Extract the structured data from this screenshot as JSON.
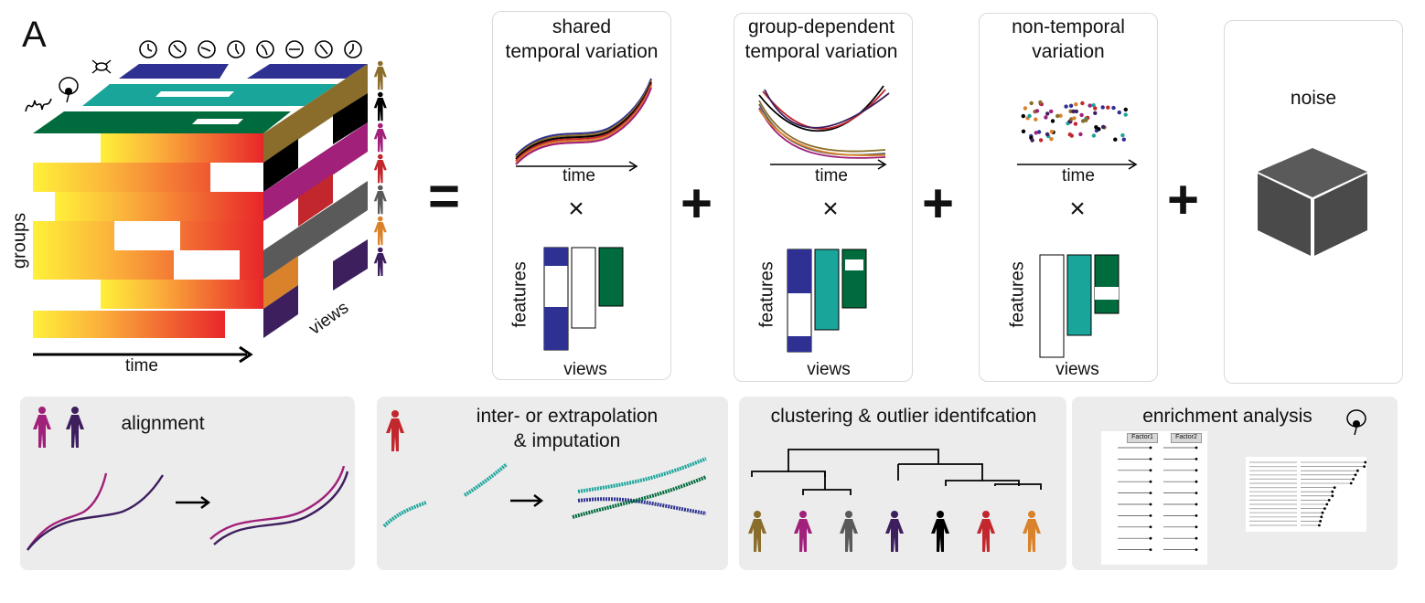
{
  "panel_label": "A",
  "cube": {
    "x_axis_label": "time",
    "y_axis_label": "groups",
    "z_axis_label": "views"
  },
  "equals_sign": "=",
  "components": [
    {
      "title_line1": "shared",
      "title_line2": "temporal variation",
      "x_label": "time",
      "multiply": "×",
      "heatmap_y_label": "features",
      "heatmap_x_label": "views"
    },
    {
      "title_line1": "group-dependent",
      "title_line2": "temporal variation",
      "x_label": "time",
      "multiply": "×",
      "heatmap_y_label": "features",
      "heatmap_x_label": "views"
    },
    {
      "title_line1": "non-temporal",
      "title_line2": "variation",
      "x_label": "time",
      "multiply": "×",
      "heatmap_y_label": "features",
      "heatmap_x_label": "views"
    },
    {
      "title_line1": "noise"
    }
  ],
  "plus_sign": "+",
  "applications": [
    {
      "title": "alignment"
    },
    {
      "title_line1": "inter- or extrapolation",
      "title_line2": "& imputation"
    },
    {
      "title": "clustering & outlier identifcation"
    },
    {
      "title": "enrichment analysis"
    }
  ],
  "enrichment": {
    "factor1_header": "Factor1",
    "factor2_header": "Factor2"
  },
  "colors": {
    "navy": "#2e3192",
    "teal": "#1aa59b",
    "green": "#006b3c",
    "olive": "#8a6d2b",
    "magenta": "#a0207a",
    "red": "#c1272d",
    "gray": "#5a5a5a",
    "orange": "#d9822b",
    "purple": "#3d1f5e",
    "black": "#000000"
  }
}
